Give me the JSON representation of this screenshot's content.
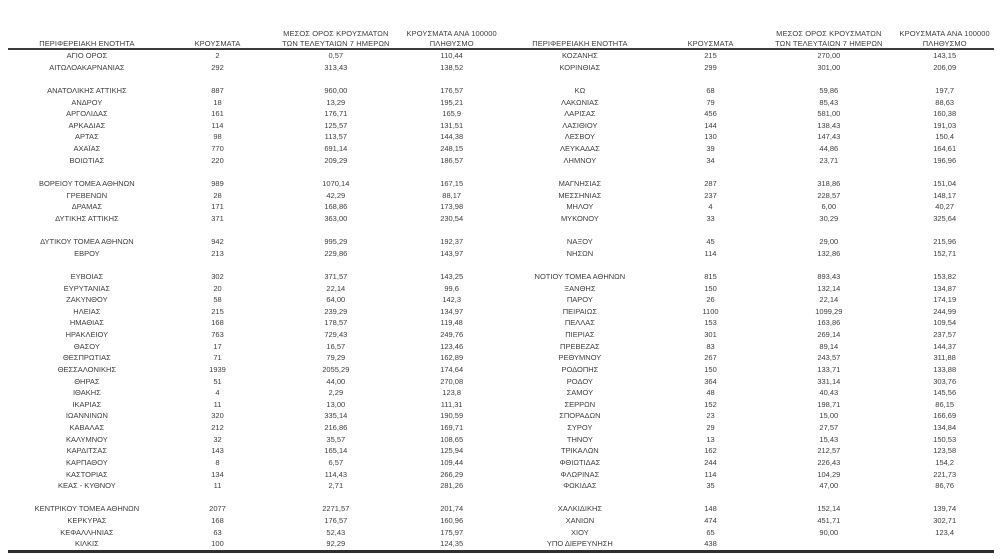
{
  "table": {
    "headers": {
      "region": "ΠΕΡΙΦΕΡΕΙΑΚΗ ΕΝΟΤΗΤΑ",
      "cases": "ΚΡΟΥΣΜΑΤΑ",
      "avg7_line1": "ΜΕΣΟΣ ΟΡΟΣ ΚΡΟΥΣΜΑΤΩΝ",
      "avg7_line2": "ΤΩΝ ΤΕΛΕΥΤΑΙΩΝ 7 ΗΜΕΡΩΝ",
      "per100k_line1": "ΚΡΟΥΣΜΑΤΑ ΑΝΑ 100000",
      "per100k_line2": "ΠΛΗΘΥΣΜΟ"
    },
    "left_rows": [
      [
        "ΑΓΙΟ ΟΡΟΣ",
        "2",
        "0,57",
        "110,44"
      ],
      [
        "ΑΙΤΩΛΟΑΚΑΡΝΑΝΙΑΣ",
        "292",
        "313,43",
        "138,52"
      ],
      [
        "",
        "",
        "",
        ""
      ],
      [
        "ΑΝΑΤΟΛΙΚΗΣ ΑΤΤΙΚΗΣ",
        "887",
        "960,00",
        "176,57"
      ],
      [
        "ΑΝΔΡΟΥ",
        "18",
        "13,29",
        "195,21"
      ],
      [
        "ΑΡΓΟΛΙΔΑΣ",
        "161",
        "176,71",
        "165,9"
      ],
      [
        "ΑΡΚΑΔΙΑΣ",
        "114",
        "125,57",
        "131,51"
      ],
      [
        "ΑΡΤΑΣ",
        "98",
        "113,57",
        "144,38"
      ],
      [
        "ΑΧΑΪΑΣ",
        "770",
        "691,14",
        "248,15"
      ],
      [
        "ΒΟΙΩΤΙΑΣ",
        "220",
        "209,29",
        "186,57"
      ],
      [
        "",
        "",
        "",
        ""
      ],
      [
        "ΒΟΡΕΙΟΥ ΤΟΜΕΑ ΑΘΗΝΩΝ",
        "989",
        "1070,14",
        "167,15"
      ],
      [
        "ΓΡΕΒΕΝΩΝ",
        "28",
        "42,29",
        "88,17"
      ],
      [
        "ΔΡΑΜΑΣ",
        "171",
        "168,86",
        "173,98"
      ],
      [
        "ΔΥΤΙΚΗΣ ΑΤΤΙΚΗΣ",
        "371",
        "363,00",
        "230,54"
      ],
      [
        "",
        "",
        "",
        ""
      ],
      [
        "ΔΥΤΙΚΟΥ ΤΟΜΕΑ ΑΘΗΝΩΝ",
        "942",
        "995,29",
        "192,37"
      ],
      [
        "ΕΒΡΟΥ",
        "213",
        "229,86",
        "143,97"
      ],
      [
        "",
        "",
        "",
        ""
      ],
      [
        "ΕΥΒΟΙΑΣ",
        "302",
        "371,57",
        "143,25"
      ],
      [
        "ΕΥΡΥΤΑΝΙΑΣ",
        "20",
        "22,14",
        "99,6"
      ],
      [
        "ΖΑΚΥΝΘΟΥ",
        "58",
        "64,00",
        "142,3"
      ],
      [
        "ΗΛΕΙΑΣ",
        "215",
        "239,29",
        "134,97"
      ],
      [
        "ΗΜΑΘΙΑΣ",
        "168",
        "178,57",
        "119,48"
      ],
      [
        "ΗΡΑΚΛΕΙΟΥ",
        "763",
        "729,43",
        "249,76"
      ],
      [
        "ΘΑΣΟΥ",
        "17",
        "16,57",
        "123,46"
      ],
      [
        "ΘΕΣΠΡΩΤΙΑΣ",
        "71",
        "79,29",
        "162,89"
      ],
      [
        "ΘΕΣΣΑΛΟΝΙΚΗΣ",
        "1939",
        "2055,29",
        "174,64"
      ],
      [
        "ΘΗΡΑΣ",
        "51",
        "44,00",
        "270,08"
      ],
      [
        "ΙΘΑΚΗΣ",
        "4",
        "2,29",
        "123,8"
      ],
      [
        "ΙΚΑΡΙΑΣ",
        "11",
        "13,00",
        "111,31"
      ],
      [
        "ΙΩΑΝΝΙΝΩΝ",
        "320",
        "335,14",
        "190,59"
      ],
      [
        "ΚΑΒΑΛΑΣ",
        "212",
        "216,86",
        "169,71"
      ],
      [
        "ΚΑΛΥΜΝΟΥ",
        "32",
        "35,57",
        "108,65"
      ],
      [
        "ΚΑΡΔΙΤΣΑΣ",
        "143",
        "165,14",
        "125,94"
      ],
      [
        "ΚΑΡΠΑΘΟΥ",
        "8",
        "6,57",
        "109,44"
      ],
      [
        "ΚΑΣΤΟΡΙΑΣ",
        "134",
        "114,43",
        "266,29"
      ],
      [
        "ΚΕΑΣ - ΚΥΘΝΟΥ",
        "11",
        "2,71",
        "281,26"
      ],
      [
        "",
        "",
        "",
        ""
      ],
      [
        "ΚΕΝΤΡΙΚΟΥ ΤΟΜΕΑ ΑΘΗΝΩΝ",
        "2077",
        "2271,57",
        "201,74"
      ],
      [
        "ΚΕΡΚΥΡΑΣ",
        "168",
        "176,57",
        "160,96"
      ],
      [
        "ΚΕΦΑΛΛΗΝΙΑΣ",
        "63",
        "52,43",
        "175,97"
      ],
      [
        "ΚΙΛΚΙΣ",
        "100",
        "92,29",
        "124,35"
      ]
    ],
    "right_rows": [
      [
        "ΚΟΖΑΝΗΣ",
        "215",
        "270,00",
        "143,15"
      ],
      [
        "ΚΟΡΙΝΘΙΑΣ",
        "299",
        "301,00",
        "206,09"
      ],
      [
        "",
        "",
        "",
        ""
      ],
      [
        "ΚΩ",
        "68",
        "59,86",
        "197,7"
      ],
      [
        "ΛΑΚΩΝΙΑΣ",
        "79",
        "85,43",
        "88,63"
      ],
      [
        "ΛΑΡΙΣΑΣ",
        "456",
        "581,00",
        "160,38"
      ],
      [
        "ΛΑΣΙΘΙΟΥ",
        "144",
        "138,43",
        "191,03"
      ],
      [
        "ΛΕΣΒΟΥ",
        "130",
        "147,43",
        "150,4"
      ],
      [
        "ΛΕΥΚΑΔΑΣ",
        "39",
        "44,86",
        "164,61"
      ],
      [
        "ΛΗΜΝΟΥ",
        "34",
        "23,71",
        "196,96"
      ],
      [
        "",
        "",
        "",
        ""
      ],
      [
        "ΜΑΓΝΗΣΙΑΣ",
        "287",
        "318,86",
        "151,04"
      ],
      [
        "ΜΕΣΣΗΝΙΑΣ",
        "237",
        "228,57",
        "148,17"
      ],
      [
        "ΜΗΛΟΥ",
        "4",
        "6,00",
        "40,27"
      ],
      [
        "ΜΥΚΟΝΟΥ",
        "33",
        "30,29",
        "325,64"
      ],
      [
        "",
        "",
        "",
        ""
      ],
      [
        "ΝΑΞΟΥ",
        "45",
        "29,00",
        "215,96"
      ],
      [
        "ΝΗΣΩΝ",
        "114",
        "132,86",
        "152,71"
      ],
      [
        "",
        "",
        "",
        ""
      ],
      [
        "ΝΟΤΙΟΥ ΤΟΜΕΑ ΑΘΗΝΩΝ",
        "815",
        "893,43",
        "153,82"
      ],
      [
        "ΞΑΝΘΗΣ",
        "150",
        "132,14",
        "134,87"
      ],
      [
        "ΠΑΡΟΥ",
        "26",
        "22,14",
        "174,19"
      ],
      [
        "ΠΕΙΡΑΙΩΣ",
        "1100",
        "1099,29",
        "244,99"
      ],
      [
        "ΠΕΛΛΑΣ",
        "153",
        "163,86",
        "109,54"
      ],
      [
        "ΠΙΕΡΙΑΣ",
        "301",
        "269,14",
        "237,57"
      ],
      [
        "ΠΡΕΒΕΖΑΣ",
        "83",
        "89,14",
        "144,37"
      ],
      [
        "ΡΕΘΥΜΝΟΥ",
        "267",
        "243,57",
        "311,88"
      ],
      [
        "ΡΟΔΟΠΗΣ",
        "150",
        "133,71",
        "133,88"
      ],
      [
        "ΡΟΔΟΥ",
        "364",
        "331,14",
        "303,76"
      ],
      [
        "ΣΑΜΟΥ",
        "48",
        "40,43",
        "145,56"
      ],
      [
        "ΣΕΡΡΩΝ",
        "152",
        "198,71",
        "86,15"
      ],
      [
        "ΣΠΟΡΑΔΩΝ",
        "23",
        "15,00",
        "166,69"
      ],
      [
        "ΣΥΡΟΥ",
        "29",
        "27,57",
        "134,84"
      ],
      [
        "ΤΗΝΟΥ",
        "13",
        "15,43",
        "150,53"
      ],
      [
        "ΤΡΙΚΑΛΩΝ",
        "162",
        "212,57",
        "123,58"
      ],
      [
        "ΦΘΙΩΤΙΔΑΣ",
        "244",
        "226,43",
        "154,2"
      ],
      [
        "ΦΛΩΡΙΝΑΣ",
        "114",
        "104,29",
        "221,73"
      ],
      [
        "ΦΩΚΙΔΑΣ",
        "35",
        "47,00",
        "86,76"
      ],
      [
        "",
        "",
        "",
        ""
      ],
      [
        "ΧΑΛΚΙΔΙΚΗΣ",
        "148",
        "152,14",
        "139,74"
      ],
      [
        "ΧΑΝΙΩΝ",
        "474",
        "451,71",
        "302,71"
      ],
      [
        "ΧΙΟΥ",
        "65",
        "90,00",
        "123,4"
      ],
      [
        "ΥΠΟ ΔΙΕΡΕΥΝΗΣΗ",
        "438",
        "",
        ""
      ]
    ],
    "text_color": "#3d3d3d",
    "rule_color": "#2e2e2e"
  }
}
